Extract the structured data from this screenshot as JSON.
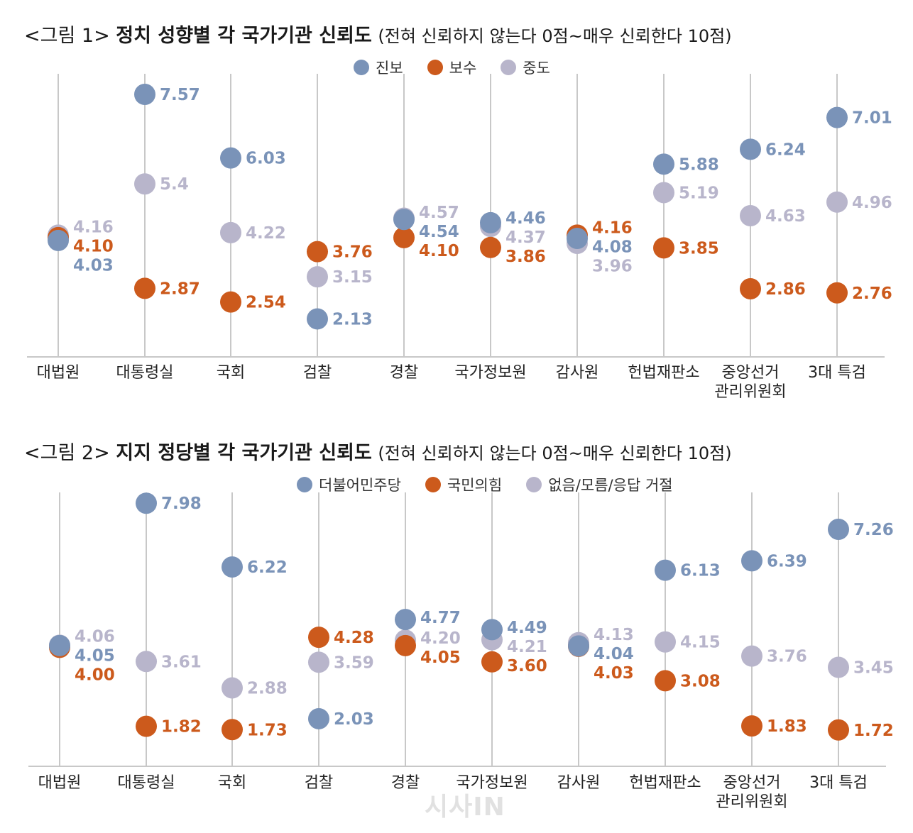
{
  "watermark": "시사IN",
  "chart_data": [
    {
      "type": "scatter",
      "title_prefix": "<그림 1>",
      "title": "정치 성향별 각 국가기관 신뢰도",
      "note": "(전혀 신뢰하지 않는다 0점~매우 신뢰한다 10점)",
      "ylim": [
        2.0,
        8.0
      ],
      "categories": [
        "대법원",
        "대통령실",
        "국회",
        "검찰",
        "경찰",
        "국가정보원",
        "감사원",
        "헌법재판소",
        "중앙선거\n관리위원회",
        "3대 특검"
      ],
      "series": [
        {
          "name": "진보",
          "color": "#7a93b8",
          "values": [
            4.03,
            7.57,
            6.03,
            2.13,
            4.54,
            4.46,
            4.08,
            5.88,
            6.24,
            7.01
          ]
        },
        {
          "name": "보수",
          "color": "#cc5a1c",
          "values": [
            4.1,
            2.87,
            2.54,
            3.76,
            4.1,
            3.86,
            4.16,
            3.85,
            2.86,
            2.76
          ]
        },
        {
          "name": "중도",
          "color": "#b8b5cb",
          "values": [
            4.16,
            5.4,
            4.22,
            3.15,
            4.57,
            4.37,
            3.96,
            5.19,
            4.63,
            4.96
          ]
        }
      ],
      "labels": [
        [
          "4.03",
          "7.57",
          "6.03",
          "2.13",
          "4.54",
          "4.46",
          "4.08",
          "5.88",
          "6.24",
          "7.01"
        ],
        [
          "4.10",
          "2.87",
          "2.54",
          "3.76",
          "4.10",
          "3.86",
          "4.16",
          "3.85",
          "2.86",
          "2.76"
        ],
        [
          "4.16",
          "5.4",
          "4.22",
          "3.15",
          "4.57",
          "4.37",
          "3.96",
          "5.19",
          "4.63",
          "4.96"
        ]
      ]
    },
    {
      "type": "scatter",
      "title_prefix": "<그림 2>",
      "title": "지지 정당별 각 국가기관 신뢰도",
      "note": "(전혀 신뢰하지 않는다 0점~매우 신뢰한다 10점)",
      "ylim": [
        1.5,
        8.2
      ],
      "categories": [
        "대법원",
        "대통령실",
        "국회",
        "검찰",
        "경찰",
        "국가정보원",
        "감사원",
        "헌법재판소",
        "중앙선거\n관리위원회",
        "3대 특검"
      ],
      "series": [
        {
          "name": "더불어민주당",
          "color": "#7a93b8",
          "values": [
            4.05,
            7.98,
            6.22,
            2.03,
            4.77,
            4.49,
            4.04,
            6.13,
            6.39,
            7.26
          ]
        },
        {
          "name": "국민의힘",
          "color": "#cc5a1c",
          "values": [
            4.0,
            1.82,
            1.73,
            4.28,
            4.05,
            3.6,
            4.03,
            3.08,
            1.83,
            1.72
          ]
        },
        {
          "name": "없음/모름/응답 거절",
          "color": "#b8b5cb",
          "values": [
            4.06,
            3.61,
            2.88,
            3.59,
            4.2,
            4.21,
            4.13,
            4.15,
            3.76,
            3.45
          ]
        }
      ],
      "labels": [
        [
          "4.05",
          "7.98",
          "6.22",
          "2.03",
          "4.77",
          "4.49",
          "4.04",
          "6.13",
          "6.39",
          "7.26"
        ],
        [
          "4.00",
          "1.82",
          "1.73",
          "4.28",
          "4.05",
          "3.60",
          "4.03",
          "3.08",
          "1.83",
          "1.72"
        ],
        [
          "4.06",
          "3.61",
          "2.88",
          "3.59",
          "4.20",
          "4.21",
          "4.13",
          "4.15",
          "3.76",
          "3.45"
        ]
      ]
    }
  ]
}
